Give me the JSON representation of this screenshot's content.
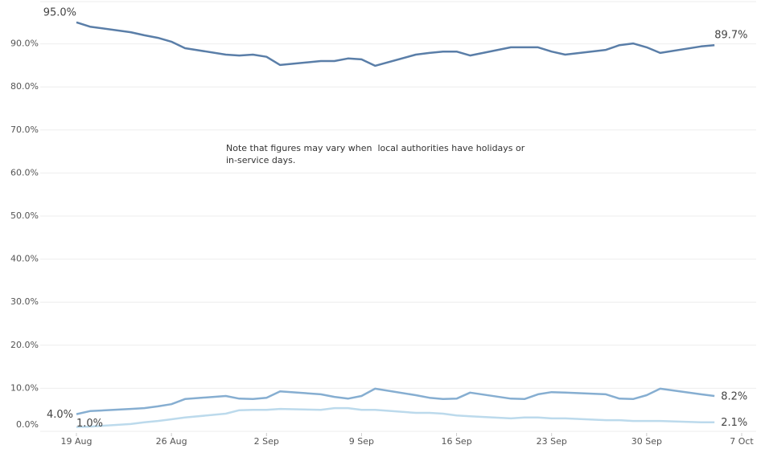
{
  "chart_data": {
    "type": "line",
    "annotation": [
      "Note that figures may vary when  local authorities have holidays or",
      "in-service days."
    ],
    "x": [
      0,
      1,
      4,
      5,
      6,
      7,
      8,
      11,
      12,
      13,
      14,
      15,
      18,
      19,
      20,
      21,
      22,
      25,
      26,
      27,
      28,
      29,
      32,
      33,
      34,
      35,
      36,
      39,
      40,
      41,
      42,
      43,
      46,
      47
    ],
    "xlim": [
      0,
      49
    ],
    "xticks": [
      {
        "value": 0,
        "label": "19 Aug"
      },
      {
        "value": 7,
        "label": "26 Aug"
      },
      {
        "value": 14,
        "label": "2 Sep"
      },
      {
        "value": 21,
        "label": "9 Sep"
      },
      {
        "value": 28,
        "label": "16 Sep"
      },
      {
        "value": 35,
        "label": "23 Sep"
      },
      {
        "value": 42,
        "label": "30 Sep"
      },
      {
        "value": 49,
        "label": "7 Oct"
      }
    ],
    "ylim": [
      0,
      100
    ],
    "yticks": [
      {
        "value": 0,
        "label": "0.0%"
      },
      {
        "value": 10,
        "label": "10.0%"
      },
      {
        "value": 20,
        "label": "20.0%"
      },
      {
        "value": 30,
        "label": "30.0%"
      },
      {
        "value": 40,
        "label": "40.0%"
      },
      {
        "value": 50,
        "label": "50.0%"
      },
      {
        "value": 60,
        "label": "60.0%"
      },
      {
        "value": 70,
        "label": "70.0%"
      },
      {
        "value": 80,
        "label": "80.0%"
      },
      {
        "value": 90,
        "label": "90.0%"
      }
    ],
    "grid": true,
    "series": [
      {
        "color": "#5a7ea8",
        "values": [
          95.0,
          94.0,
          92.7,
          92.0,
          91.4,
          90.5,
          89.0,
          87.5,
          87.3,
          87.5,
          87.0,
          85.1,
          86.0,
          86.0,
          86.6,
          86.4,
          84.9,
          87.5,
          87.9,
          88.2,
          88.2,
          87.3,
          89.2,
          89.2,
          89.2,
          88.2,
          87.5,
          88.6,
          89.7,
          90.1,
          89.2,
          87.9,
          89.4,
          89.7
        ],
        "value_labels": [
          "95.0%",
          null,
          null,
          null,
          null,
          null,
          null,
          null,
          null,
          null,
          null,
          null,
          null,
          null,
          null,
          null,
          null,
          null,
          null,
          null,
          null,
          null,
          null,
          null,
          null,
          null,
          null,
          null,
          null,
          null,
          null,
          null,
          null,
          "89.7%"
        ]
      },
      {
        "color": "#86aed1",
        "values": [
          4.0,
          4.7,
          5.2,
          5.4,
          5.8,
          6.3,
          7.5,
          8.2,
          7.6,
          7.5,
          7.8,
          9.3,
          8.6,
          8.0,
          7.6,
          8.2,
          9.9,
          8.4,
          7.8,
          7.5,
          7.6,
          9.0,
          7.6,
          7.5,
          8.6,
          9.1,
          9.0,
          8.6,
          7.6,
          7.5,
          8.4,
          9.9,
          8.6,
          8.2
        ],
        "value_labels": [
          "4.0%",
          null,
          null,
          null,
          null,
          null,
          null,
          null,
          null,
          null,
          null,
          null,
          null,
          null,
          null,
          null,
          null,
          null,
          null,
          null,
          null,
          null,
          null,
          null,
          null,
          null,
          null,
          null,
          null,
          null,
          null,
          null,
          null,
          "8.2%"
        ]
      },
      {
        "color": "#bcdaec",
        "values": [
          1.0,
          1.1,
          1.7,
          2.1,
          2.4,
          2.8,
          3.2,
          4.1,
          4.9,
          5.0,
          5.0,
          5.2,
          5.0,
          5.4,
          5.4,
          5.0,
          5.0,
          4.3,
          4.3,
          4.1,
          3.7,
          3.5,
          3.0,
          3.2,
          3.2,
          3.0,
          3.0,
          2.6,
          2.6,
          2.4,
          2.4,
          2.4,
          2.1,
          2.1
        ],
        "value_labels": [
          "1.0%",
          null,
          null,
          null,
          null,
          null,
          null,
          null,
          null,
          null,
          null,
          null,
          null,
          null,
          null,
          null,
          null,
          null,
          null,
          null,
          null,
          null,
          null,
          null,
          null,
          null,
          null,
          null,
          null,
          null,
          null,
          null,
          null,
          "2.1%"
        ]
      }
    ]
  }
}
